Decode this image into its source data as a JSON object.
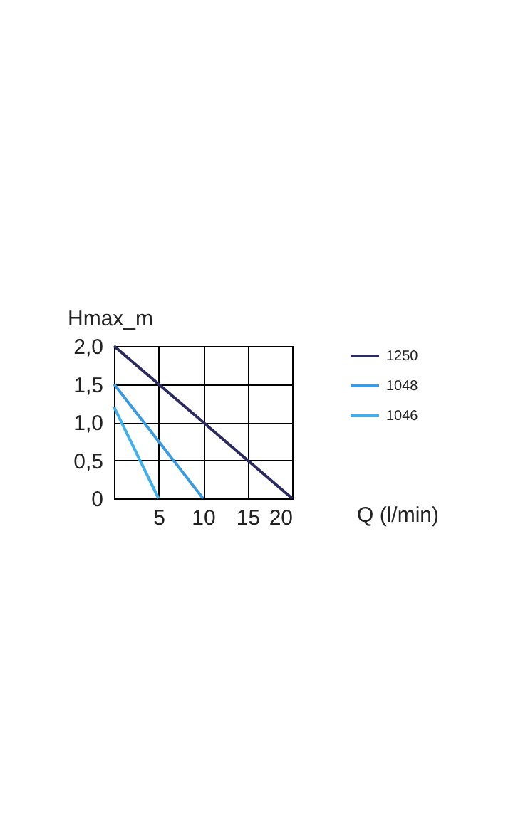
{
  "chart_data": {
    "type": "line",
    "ylabel": "Hmax_m",
    "xlabel": "Q (l/min)",
    "series": [
      {
        "name": "1250",
        "color": "#2b2a5c",
        "x": [
          0,
          20
        ],
        "values": [
          2.0,
          0
        ]
      },
      {
        "name": "1048",
        "color": "#3a9be0",
        "x": [
          0,
          10
        ],
        "values": [
          1.5,
          0
        ]
      },
      {
        "name": "1046",
        "color": "#3fb2ee",
        "x": [
          0,
          5
        ],
        "values": [
          1.2,
          0
        ]
      }
    ],
    "xlim": [
      0,
      20
    ],
    "xticks": [
      {
        "value": 0,
        "label": null
      },
      5,
      10,
      15,
      20
    ],
    "ylim": [
      0,
      2.0
    ],
    "yticks": [
      {
        "value": 0,
        "label": "0"
      },
      {
        "value": 0.5,
        "label": "0,5"
      },
      {
        "value": 1.0,
        "label": "1,0"
      },
      {
        "value": 1.5,
        "label": "1,5"
      },
      {
        "value": 2.0,
        "label": "2,0"
      }
    ],
    "grid": true,
    "legend": "right",
    "marker": "none",
    "line_style": "solid"
  }
}
